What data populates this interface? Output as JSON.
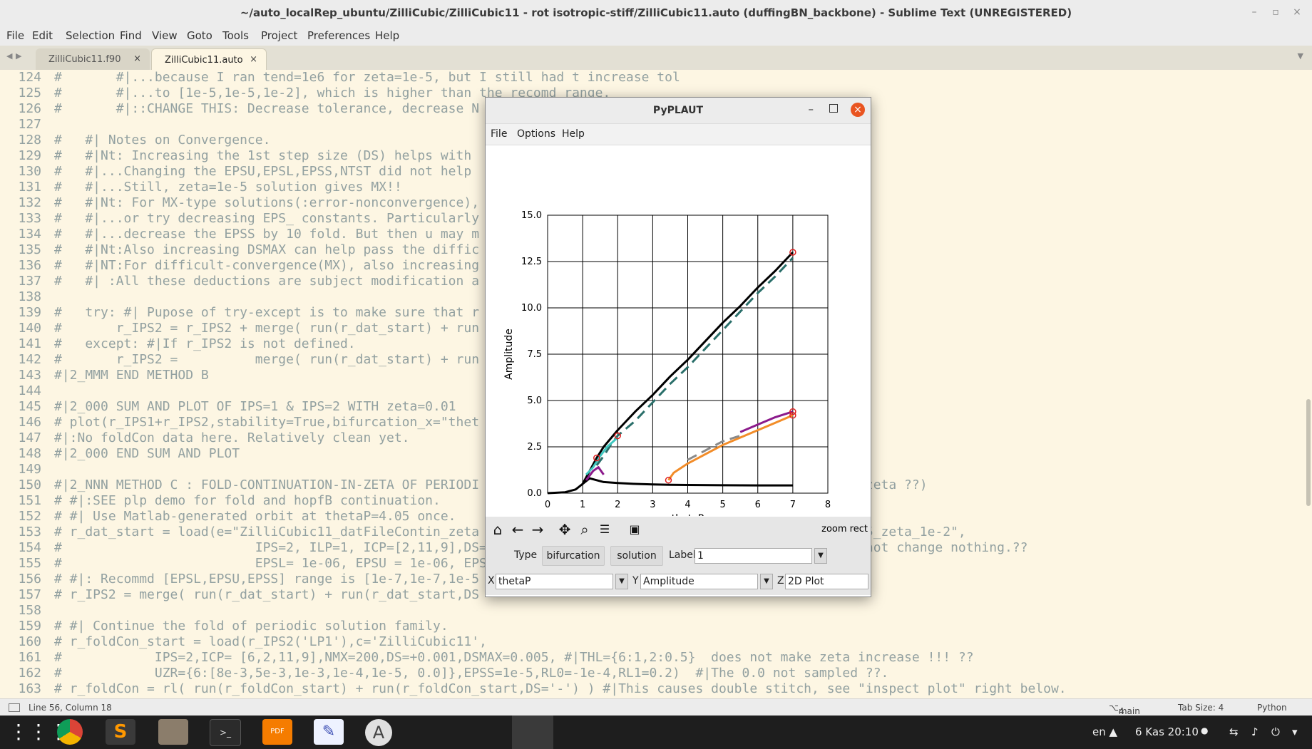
{
  "window": {
    "title": "~/auto_localRep_ubuntu/ZilliCubic/ZilliCubic11 - rot isotropic-stiff/ZilliCubic11.auto (duffingBN_backbone) - Sublime Text (UNREGISTERED)",
    "minimize_glyph": "–",
    "maximize_glyph": "▫",
    "close_glyph": "×"
  },
  "menu": [
    "File",
    "Edit",
    "Selection",
    "Find",
    "View",
    "Goto",
    "Tools",
    "Project",
    "Preferences",
    "Help"
  ],
  "tabs": {
    "nav_left": "◀",
    "nav_right": "▶",
    "overflow": "▼",
    "close_glyph": "×",
    "items": [
      {
        "label": "ZilliCubic11.f90",
        "active": false
      },
      {
        "label": "ZilliCubic11.auto",
        "active": true
      }
    ]
  },
  "editor": {
    "lines": [
      {
        "n": "124",
        "t": "#       #|...because I ran tend=1e6 for zeta=1e-5, but I still had t increase tol"
      },
      {
        "n": "125",
        "t": "#       #|...to [1e-5,1e-5,1e-2], which is higher than the recomd range."
      },
      {
        "n": "126",
        "t": "#       #|::CHANGE THIS: Decrease tolerance, decrease N"
      },
      {
        "n": "127",
        "t": ""
      },
      {
        "n": "128",
        "t": "#   #| Notes on Convergence."
      },
      {
        "n": "129",
        "t": "#   #|Nt: Increasing the 1st step size (DS) helps with"
      },
      {
        "n": "130",
        "t": "#   #|...Changing the EPSU,EPSL,EPSS,NTST did not help"
      },
      {
        "n": "131",
        "t": "#   #|...Still, zeta=1e-5 solution gives MX!!"
      },
      {
        "n": "132",
        "t": "#   #|Nt: For MX-type solutions(:error-nonconvergence),"
      },
      {
        "n": "133",
        "t": "#   #|...or try decreasing EPS_ constants. Particularly"
      },
      {
        "n": "134",
        "t": "#   #|...decrease the EPSS by 10 fold. But then u may m"
      },
      {
        "n": "135",
        "t": "#   #|Nt:Also increasing DSMAX can help pass the diffic"
      },
      {
        "n": "136",
        "t": "#   #|NT:For difficult-convergence(MX), also increasing"
      },
      {
        "n": "137",
        "t": "#   #| :All these deductions are subject modification a"
      },
      {
        "n": "138",
        "t": ""
      },
      {
        "n": "139",
        "t": "#   try: #| Pupose of try-except is to make sure that r"
      },
      {
        "n": "140",
        "t": "#       r_IPS2 = r_IPS2 + merge( run(r_dat_start) + run"
      },
      {
        "n": "141",
        "t": "#   except: #|If r_IPS2 is not defined."
      },
      {
        "n": "142",
        "t": "#       r_IPS2 =          merge( run(r_dat_start) + run"
      },
      {
        "n": "143",
        "t": "#|2_MMM END METHOD B"
      },
      {
        "n": "144",
        "t": ""
      },
      {
        "n": "145",
        "t": "#|2_000 SUM AND PLOT OF IPS=1 & IPS=2 WITH zeta=0.01"
      },
      {
        "n": "146",
        "t": "# plot(r_IPS1+r_IPS2,stability=True,bifurcation_x=\"thet"
      },
      {
        "n": "147",
        "t": "#|:No foldCon data here. Relatively clean yet."
      },
      {
        "n": "148",
        "t": "#|2_000 END SUM AND PLOT"
      },
      {
        "n": "149",
        "t": ""
      },
      {
        "n": "150",
        "t": "#|2_NNN METHOD C : FOLD-CONTINUATION-IN-ZETA OF PERIODI                                            igher zeta ??)"
      },
      {
        "n": "151",
        "t": "# #|:SEE plp demo for fold and hopfB continuation."
      },
      {
        "n": "152",
        "t": "# #| Use Matlab-generated orbit at thetaP=4.05 once."
      },
      {
        "n": "153",
        "t": "# r_dat_start = load(e=\"ZilliCubic11_datFileContin_zeta                                            ot_4p05_zeta_1e-2\","
      },
      {
        "n": "154",
        "t": "#                         IPS=2, ILP=1, ICP=[2,11,9],DS=+                                          1 did not change nothing.??"
      },
      {
        "n": "155",
        "t": "#                         EPSL= 1e-06, EPSU = 1e-06, EPSS"
      },
      {
        "n": "156",
        "t": "# #|: Recommd [EPSL,EPSU,EPSS] range is [1e-7,1e-7,1e-5"
      },
      {
        "n": "157",
        "t": "# r_IPS2 = merge( run(r_dat_start) + run(r_dat_start,DS"
      },
      {
        "n": "158",
        "t": ""
      },
      {
        "n": "159",
        "t": "# #| Continue the fold of periodic solution family."
      },
      {
        "n": "160",
        "t": "# r_foldCon_start = load(r_IPS2('LP1'),c='ZilliCubic11',"
      },
      {
        "n": "161",
        "t": "#            IPS=2,ICP= [6,2,11,9],NMX=200,DS=+0.001,DSMAX=0.005, #|THL={6:1,2:0.5}  does not make zeta increase !!! ??"
      },
      {
        "n": "162",
        "t": "#            UZR={6:[8e-3,5e-3,1e-3,1e-4,1e-5, 0.0]},EPSS=1e-5,RL0=-1e-4,RL1=0.2)  #|The 0.0 not sampled ??."
      },
      {
        "n": "163",
        "t": "# r_foldCon = rl( run(r_foldCon_start) + run(r_foldCon_start,DS='-') ) #|This causes double stitch, see \"inspect plot\" right below."
      }
    ]
  },
  "status": {
    "position": "Line 56, Column 18",
    "branch": "main",
    "branch_count": "4",
    "tab_size": "Tab Size: 4",
    "syntax": "Python"
  },
  "pyplaut": {
    "title": "PyPLAUT",
    "menu": [
      "File",
      "Options",
      "Help"
    ],
    "toolbar_mode": "zoom rect",
    "type_label": "Type",
    "btn_bifurcation": "bifurcation",
    "btn_solution": "solution",
    "label_label": "Label",
    "label_value": "1",
    "x_label": "X",
    "x_value": "thetaP",
    "y_label": "Y",
    "y_value": "Amplitude",
    "z_label": "Z",
    "z_value": "2D Plot",
    "dropdown_glyph": "▼"
  },
  "chart_data": {
    "type": "line",
    "title": "",
    "xlabel": "thetaP",
    "ylabel": "Amplitude",
    "xlim": [
      0,
      8
    ],
    "ylim": [
      0,
      15
    ],
    "xticks": [
      "0",
      "1",
      "2",
      "3",
      "4",
      "5",
      "6",
      "7",
      "8"
    ],
    "yticks": [
      "0.0",
      "2.5",
      "5.0",
      "7.5",
      "10.0",
      "12.5",
      "15.0"
    ],
    "grid": true,
    "series": [
      {
        "color": "#000000",
        "style": "solid",
        "x": [
          0,
          0.5,
          0.8,
          1.0,
          1.2,
          1.4,
          1.6,
          2.0,
          2.5,
          3.0,
          3.5,
          4.0,
          4.5,
          5.0,
          5.5,
          6.0,
          6.5,
          7.0
        ],
        "y": [
          0,
          0.05,
          0.2,
          0.5,
          1.2,
          1.9,
          2.5,
          3.4,
          4.4,
          5.3,
          6.3,
          7.2,
          8.2,
          9.2,
          10.1,
          11.1,
          12.0,
          13.0
        ]
      },
      {
        "color": "#000000",
        "style": "solid",
        "x": [
          1.0,
          1.2,
          1.4,
          1.6,
          2.0,
          2.5,
          3.0,
          3.5,
          4.0,
          5.0,
          6.0,
          7.0
        ],
        "y": [
          0.5,
          0.8,
          0.7,
          0.6,
          0.55,
          0.5,
          0.47,
          0.45,
          0.44,
          0.43,
          0.42,
          0.42
        ]
      },
      {
        "color": "#2a6f6a",
        "style": "dashed",
        "x": [
          1.4,
          1.6,
          1.8,
          2.0,
          2.5,
          3.0,
          3.5,
          4.0,
          4.5,
          5.0,
          5.5,
          6.0,
          6.5,
          7.0
        ],
        "y": [
          1.5,
          2.0,
          2.6,
          3.1,
          3.9,
          4.9,
          5.9,
          6.8,
          7.8,
          8.8,
          9.8,
          10.8,
          11.7,
          12.7
        ]
      },
      {
        "color": "#40c8c0",
        "style": "solid",
        "x": [
          1.1,
          1.3,
          1.5,
          1.7,
          2.0
        ],
        "y": [
          1.0,
          1.4,
          2.0,
          2.5,
          3.0
        ]
      },
      {
        "color": "#f28c28",
        "style": "solid",
        "x": [
          3.45,
          3.6,
          4.0,
          4.5,
          5.0,
          5.5,
          6.0,
          6.5,
          7.0
        ],
        "y": [
          0.7,
          1.1,
          1.6,
          2.1,
          2.6,
          3.0,
          3.4,
          3.8,
          4.2
        ]
      },
      {
        "color": "#8a8a8a",
        "style": "dashed",
        "x": [
          4.0,
          4.5,
          5.0,
          5.5
        ],
        "y": [
          1.8,
          2.3,
          2.8,
          3.1
        ]
      },
      {
        "color": "#8b1a8b",
        "style": "solid",
        "x": [
          5.5,
          6.0,
          6.5,
          7.0
        ],
        "y": [
          3.3,
          3.7,
          4.1,
          4.4
        ]
      },
      {
        "color": "#8b1a8b",
        "style": "solid",
        "x": [
          1.1,
          1.3,
          1.45,
          1.6
        ],
        "y": [
          0.7,
          1.2,
          1.4,
          1.0
        ]
      }
    ]
  }
}
